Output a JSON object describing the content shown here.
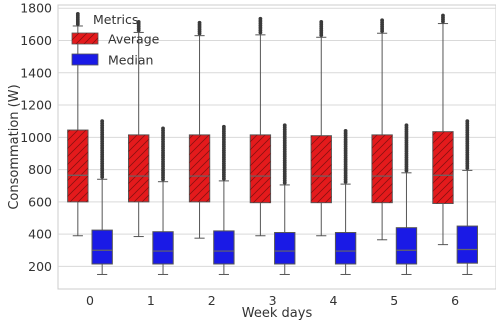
{
  "chart_data": {
    "type": "box",
    "xlabel": "Week days",
    "ylabel": "Consommation (W)",
    "categories": [
      "0",
      "1",
      "2",
      "3",
      "4",
      "5",
      "6"
    ],
    "yticks": [
      200,
      400,
      600,
      800,
      1000,
      1200,
      1400,
      1600,
      1800
    ],
    "ylim": [
      60,
      1820
    ],
    "grid": "horizontal",
    "legend": {
      "title": "Metrics",
      "placement": "top-left",
      "entries": [
        "Average",
        "Median"
      ]
    },
    "series": [
      {
        "name": "Average",
        "color": "#e41a1c",
        "hatch": "diagonal",
        "boxes": [
          {
            "q1": 600,
            "median": 765,
            "q3": 1045,
            "whisker_low": 390,
            "whisker_high": 1690,
            "outlier_max": 1765
          },
          {
            "q1": 600,
            "median": 760,
            "q3": 1015,
            "whisker_low": 385,
            "whisker_high": 1650,
            "outlier_max": 1715
          },
          {
            "q1": 600,
            "median": 760,
            "q3": 1015,
            "whisker_low": 375,
            "whisker_high": 1630,
            "outlier_max": 1710
          },
          {
            "q1": 595,
            "median": 760,
            "q3": 1015,
            "whisker_low": 390,
            "whisker_high": 1635,
            "outlier_max": 1735
          },
          {
            "q1": 595,
            "median": 760,
            "q3": 1010,
            "whisker_low": 390,
            "whisker_high": 1620,
            "outlier_max": 1715
          },
          {
            "q1": 595,
            "median": 760,
            "q3": 1015,
            "whisker_low": 365,
            "whisker_high": 1645,
            "outlier_max": 1725
          },
          {
            "q1": 590,
            "median": 765,
            "q3": 1035,
            "whisker_low": 335,
            "whisker_high": 1705,
            "outlier_max": 1755
          }
        ]
      },
      {
        "name": "Median",
        "color": "#1a1ae6",
        "hatch": "none",
        "boxes": [
          {
            "q1": 215,
            "median": 300,
            "q3": 425,
            "whisker_low": 150,
            "whisker_high": 740,
            "outlier_max": 1100
          },
          {
            "q1": 215,
            "median": 295,
            "q3": 415,
            "whisker_low": 150,
            "whisker_high": 725,
            "outlier_max": 1055
          },
          {
            "q1": 215,
            "median": 295,
            "q3": 420,
            "whisker_low": 150,
            "whisker_high": 730,
            "outlier_max": 1065
          },
          {
            "q1": 215,
            "median": 295,
            "q3": 410,
            "whisker_low": 150,
            "whisker_high": 705,
            "outlier_max": 1075
          },
          {
            "q1": 215,
            "median": 295,
            "q3": 410,
            "whisker_low": 150,
            "whisker_high": 710,
            "outlier_max": 1040
          },
          {
            "q1": 215,
            "median": 300,
            "q3": 440,
            "whisker_low": 150,
            "whisker_high": 780,
            "outlier_max": 1075
          },
          {
            "q1": 220,
            "median": 305,
            "q3": 450,
            "whisker_low": 150,
            "whisker_high": 795,
            "outlier_max": 1100
          }
        ]
      }
    ]
  }
}
